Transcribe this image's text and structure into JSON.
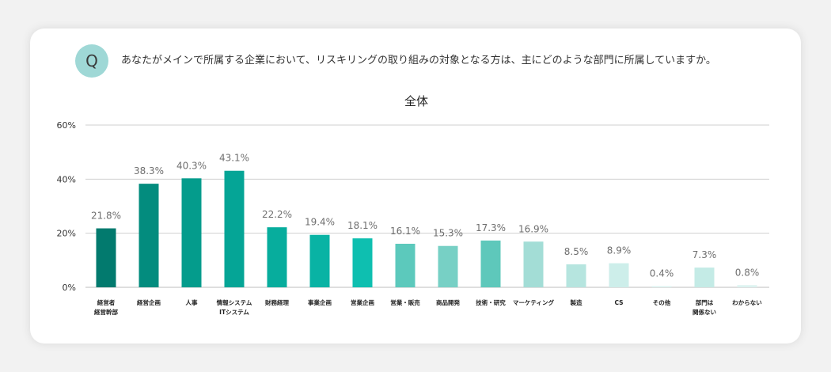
{
  "question": {
    "badge": "Q",
    "text": "あなたがメインで所属する企業において、リスキリングの取り組みの対象となる方は、主にどのような部門に所属していますか。"
  },
  "chart_data": {
    "type": "bar",
    "title": "全体",
    "xlabel": "",
    "ylabel": "",
    "ylim": [
      0,
      60
    ],
    "yticks": [
      0,
      20,
      40,
      60
    ],
    "ytick_labels": [
      "0%",
      "20%",
      "40%",
      "60%"
    ],
    "grid": true,
    "categories": [
      [
        "経営者",
        "経営幹部"
      ],
      [
        "経営企画"
      ],
      [
        "人事"
      ],
      [
        "情報システム",
        "ITシステム"
      ],
      [
        "財務経理"
      ],
      [
        "事業企画"
      ],
      [
        "営業企画"
      ],
      [
        "営業・販売"
      ],
      [
        "商品開発"
      ],
      [
        "技術・研究"
      ],
      [
        "マーケティング"
      ],
      [
        "製造"
      ],
      [
        "CS"
      ],
      [
        "その他"
      ],
      [
        "部門は",
        "関係ない"
      ],
      [
        "わからない"
      ]
    ],
    "values": [
      21.8,
      38.3,
      40.3,
      43.1,
      22.2,
      19.4,
      18.1,
      16.1,
      15.3,
      17.3,
      16.9,
      8.5,
      8.9,
      0.4,
      7.3,
      0.8
    ],
    "value_labels": [
      "21.8%",
      "38.3%",
      "40.3%",
      "43.1%",
      "22.2%",
      "19.4%",
      "18.1%",
      "16.1%",
      "15.3%",
      "17.3%",
      "16.9%",
      "8.5%",
      "8.9%",
      "0.4%",
      "7.3%",
      "0.8%"
    ],
    "colors": [
      "#027a6e",
      "#038c7e",
      "#049c8c",
      "#05a596",
      "#07ad9d",
      "#09b3a4",
      "#0ebfb0",
      "#5cc9bc",
      "#77d0c5",
      "#5ec8bb",
      "#a3ddd6",
      "#b6e5df",
      "#cdeeea",
      "#d9f2ef",
      "#c4ebe6",
      "#ddf3f0"
    ]
  }
}
